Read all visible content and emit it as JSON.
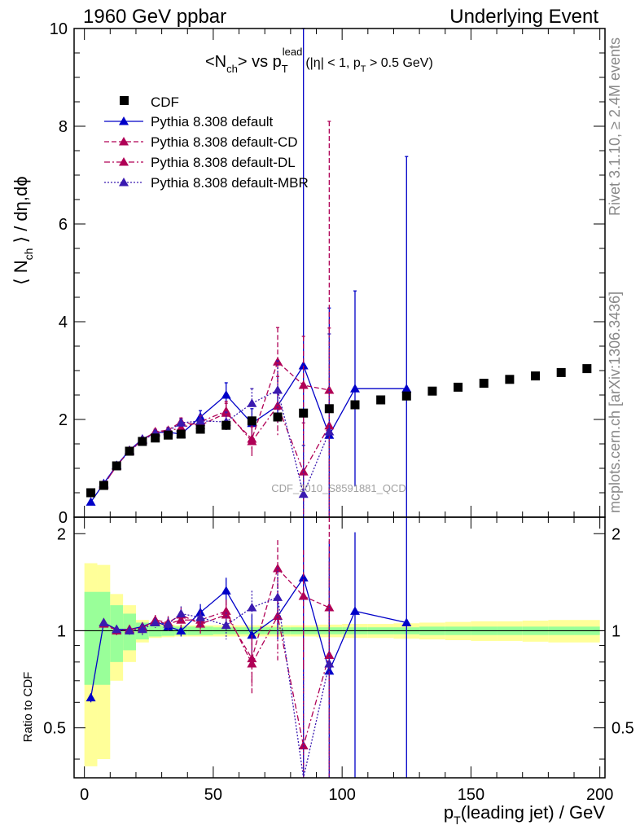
{
  "header": {
    "left": "1960 GeV ppbar",
    "right": "Underlying Event"
  },
  "side_labels": {
    "rivet": "Rivet 3.1.10, ≥ 2.4M events",
    "mcplots": "mcplots.cern.ch [arXiv:1306.3436]"
  },
  "watermark": "CDF_2010_S8591881_QCD",
  "chart_data": [
    {
      "type": "scatter",
      "title": {
        "prefix": "<N",
        "prefix_sub": "ch",
        "middle": "> vs p",
        "p_sup": "lead",
        "p_sub": "T",
        "suffix_a": "(|η| < 1, p",
        "suffix_sub": "T",
        "suffix_b": " > 0.5 GeV)"
      },
      "ylabel": {
        "a": "⟨ N",
        "sub": "ch",
        "b": " ⟩ / dη,dϕ"
      },
      "xlabel": {
        "a": "p",
        "sub": "T",
        "b": "(leading jet) / GeV"
      },
      "xlim": [
        -4,
        202
      ],
      "ylim": [
        0,
        10
      ],
      "y_ticks": [
        0,
        2,
        4,
        6,
        8,
        10
      ],
      "x_ticks": [
        0,
        50,
        100,
        150,
        200
      ],
      "legend_position": "top-left",
      "data": {
        "name": "CDF",
        "x": [
          2.5,
          7.5,
          12.5,
          17.5,
          22.5,
          27.5,
          32.5,
          37.5,
          45,
          55,
          65,
          75,
          85,
          95,
          105,
          115,
          125,
          135,
          145,
          155,
          165,
          175,
          185,
          195
        ],
        "y": [
          0.5,
          0.65,
          1.05,
          1.35,
          1.55,
          1.62,
          1.68,
          1.7,
          1.8,
          1.88,
          1.97,
          2.05,
          2.13,
          2.22,
          2.3,
          2.4,
          2.48,
          2.58,
          2.66,
          2.74,
          2.82,
          2.89,
          2.96,
          3.04
        ],
        "band_x_edges": [
          0,
          5,
          10,
          15,
          20,
          25,
          30,
          35,
          40,
          50,
          60,
          70,
          80,
          90,
          100,
          110,
          120,
          130,
          140,
          150,
          160,
          170,
          180,
          190,
          200
        ],
        "ratio_stat_half": [
          0.32,
          0.32,
          0.2,
          0.13,
          0.06,
          0.04,
          0.035,
          0.03,
          0.03,
          0.025,
          0.025,
          0.025,
          0.025,
          0.025,
          0.025,
          0.025,
          0.025,
          0.03,
          0.03,
          0.03,
          0.03,
          0.03,
          0.03,
          0.03
        ],
        "ratio_total_half": [
          0.62,
          0.6,
          0.3,
          0.2,
          0.08,
          0.05,
          0.045,
          0.04,
          0.04,
          0.04,
          0.04,
          0.04,
          0.04,
          0.045,
          0.05,
          0.05,
          0.055,
          0.06,
          0.065,
          0.07,
          0.07,
          0.075,
          0.08,
          0.08
        ]
      },
      "series": [
        {
          "name": "Pythia 8.308 default",
          "color": "#0000c8",
          "dash": "",
          "x": [
            2.5,
            7.5,
            12.5,
            17.5,
            22.5,
            27.5,
            32.5,
            37.5,
            45,
            55,
            65,
            75,
            85,
            95,
            105,
            125
          ],
          "y": [
            0.31,
            0.69,
            1.06,
            1.37,
            1.6,
            1.73,
            1.74,
            1.7,
            2.05,
            2.5,
            1.92,
            2.28,
            3.1,
            1.68,
            2.63,
            2.63
          ],
          "err": [
            0.01,
            0.01,
            0.01,
            0.02,
            0.02,
            0.03,
            0.05,
            0.07,
            0.13,
            0.25,
            0.3,
            0.35,
            7.5,
            2.6,
            2.0,
            4.75
          ],
          "ratio": [
            0.62,
            1.06,
            1.01,
            1.01,
            1.03,
            1.07,
            1.03,
            1.0,
            1.14,
            1.33,
            0.97,
            1.11,
            1.46,
            0.75,
            1.15,
            1.06
          ],
          "ratio_err": [
            0.02,
            0.02,
            0.02,
            0.02,
            0.02,
            0.03,
            0.03,
            0.04,
            0.07,
            0.13,
            0.15,
            0.17,
            3.5,
            1.15,
            0.87,
            1.9
          ]
        },
        {
          "name": "Pythia 8.308 default-CD",
          "color": "#b00056",
          "dash": "6,3",
          "x": [
            7.5,
            12.5,
            17.5,
            22.5,
            27.5,
            32.5,
            37.5,
            45,
            55,
            65,
            75,
            85,
            95
          ],
          "y": [
            0.66,
            1.05,
            1.36,
            1.58,
            1.75,
            1.78,
            1.95,
            1.88,
            2.13,
            1.6,
            3.18,
            2.7,
            2.6
          ],
          "err": [
            0.02,
            0.02,
            0.03,
            0.04,
            0.05,
            0.06,
            0.08,
            0.12,
            0.2,
            0.3,
            0.7,
            1.0,
            5.5
          ],
          "ratio": [
            1.06,
            1.0,
            1.01,
            1.02,
            1.08,
            1.06,
            1.12,
            1.05,
            1.12,
            0.82,
            1.56,
            1.28,
            1.18
          ],
          "ratio_err": [
            0.03,
            0.03,
            0.03,
            0.04,
            0.04,
            0.05,
            0.06,
            0.07,
            0.1,
            0.15,
            0.35,
            0.5,
            2.5
          ]
        },
        {
          "name": "Pythia 8.308 default-DL",
          "color": "#b00056",
          "dash": "7,3,2,3",
          "x": [
            7.5,
            12.5,
            17.5,
            22.5,
            27.5,
            32.5,
            37.5,
            45,
            55,
            65,
            75,
            85,
            95
          ],
          "y": [
            0.66,
            1.05,
            1.36,
            1.58,
            1.74,
            1.76,
            1.83,
            1.95,
            2.17,
            1.55,
            2.28,
            0.93,
            1.87
          ],
          "err": [
            0.02,
            0.02,
            0.03,
            0.04,
            0.05,
            0.06,
            0.08,
            0.12,
            0.2,
            0.3,
            0.6,
            1.0,
            2.0
          ],
          "ratio": [
            1.05,
            1.0,
            1.01,
            1.02,
            1.07,
            1.05,
            1.08,
            1.08,
            1.15,
            0.79,
            1.11,
            0.44,
            0.84
          ],
          "ratio_err": [
            0.03,
            0.03,
            0.03,
            0.04,
            0.04,
            0.05,
            0.06,
            0.07,
            0.1,
            0.15,
            0.3,
            0.5,
            0.9
          ]
        },
        {
          "name": "Pythia 8.308 default-MBR",
          "color": "#3a1ab0",
          "dash": "2,2",
          "x": [
            7.5,
            12.5,
            17.5,
            22.5,
            27.5,
            32.5,
            37.5,
            45,
            55,
            65,
            75,
            85,
            95
          ],
          "y": [
            0.68,
            1.06,
            1.35,
            1.57,
            1.72,
            1.76,
            1.93,
            1.97,
            1.95,
            2.33,
            2.6,
            0.47,
            1.75
          ],
          "err": [
            0.02,
            0.02,
            0.03,
            0.04,
            0.05,
            0.06,
            0.08,
            0.12,
            0.2,
            0.3,
            0.6,
            1.0,
            2.0
          ],
          "ratio": [
            1.06,
            1.01,
            1.0,
            1.01,
            1.06,
            1.05,
            1.13,
            1.1,
            1.04,
            1.18,
            1.27,
            0.22,
            0.79
          ],
          "ratio_err": [
            0.03,
            0.03,
            0.03,
            0.04,
            0.04,
            0.05,
            0.06,
            0.07,
            0.1,
            0.15,
            0.3,
            0.5,
            0.9
          ]
        }
      ]
    },
    {
      "type": "scatter",
      "name": "ratio-panel",
      "ylabel": "Ratio to CDF",
      "ylim": [
        0.35,
        2.25
      ],
      "y_ticks": [
        0.5,
        1,
        2
      ],
      "y_tick_labels": [
        "0.5",
        "1",
        "2"
      ],
      "reference": 1
    }
  ]
}
